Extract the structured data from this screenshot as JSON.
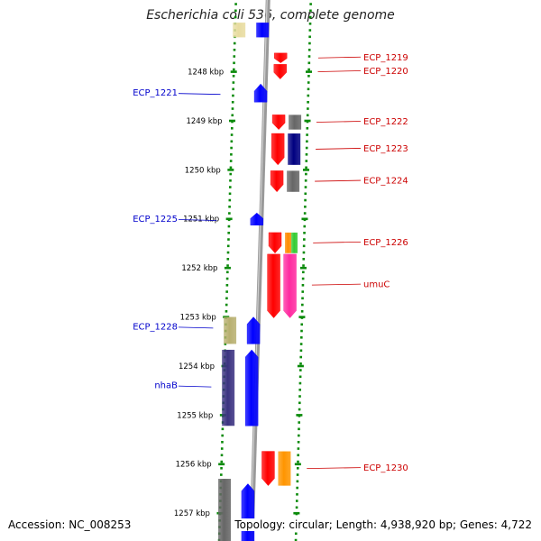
{
  "title": "Escherichia coli 536, complete genome",
  "footer": {
    "accession": "Accession: NC_008253",
    "summary": "Topology: circular; Length: 4,938,920 bp; Genes: 4,722"
  },
  "colors": {
    "backbone": "#999999",
    "tick": "#0a8a0a",
    "forward_label": "#0000cc",
    "reverse_label": "#cc0000"
  },
  "chart_data": {
    "type": "genome-map",
    "axis_unit": "kbp",
    "ticks": [
      {
        "kbp": 1248,
        "label": "1248 kbp"
      },
      {
        "kbp": 1249,
        "label": "1249 kbp"
      },
      {
        "kbp": 1250,
        "label": "1250 kbp"
      },
      {
        "kbp": 1251,
        "label": "1251 kbp"
      },
      {
        "kbp": 1252,
        "label": "1252 kbp"
      },
      {
        "kbp": 1253,
        "label": "1253 kbp"
      },
      {
        "kbp": 1254,
        "label": "1254 kbp"
      },
      {
        "kbp": 1255,
        "label": "1255 kbp"
      },
      {
        "kbp": 1256,
        "label": "1256 kbp"
      },
      {
        "kbp": 1257,
        "label": "1257 kbp"
      }
    ],
    "labeled_genes": [
      {
        "name": "ECP_1219",
        "strand": "reverse",
        "start_kbp": 1247.62,
        "end_kbp": 1247.82
      },
      {
        "name": "ECP_1220",
        "strand": "reverse",
        "start_kbp": 1247.85,
        "end_kbp": 1248.15
      },
      {
        "name": "ECP_1221",
        "strand": "forward",
        "start_kbp": 1248.25,
        "end_kbp": 1248.62
      },
      {
        "name": "ECP_1222",
        "strand": "reverse",
        "start_kbp": 1248.88,
        "end_kbp": 1249.18
      },
      {
        "name": "ECP_1223",
        "strand": "reverse",
        "start_kbp": 1249.26,
        "end_kbp": 1249.9
      },
      {
        "name": "ECP_1224",
        "strand": "reverse",
        "start_kbp": 1250.02,
        "end_kbp": 1250.45
      },
      {
        "name": "ECP_1225",
        "strand": "forward",
        "start_kbp": 1250.88,
        "end_kbp": 1251.13
      },
      {
        "name": "ECP_1226",
        "strand": "reverse",
        "start_kbp": 1251.28,
        "end_kbp": 1251.7
      },
      {
        "name": "umuC",
        "strand": "reverse",
        "start_kbp": 1251.72,
        "end_kbp": 1253.02
      },
      {
        "name": "ECP_1228",
        "strand": "forward",
        "start_kbp": 1253.0,
        "end_kbp": 1253.55
      },
      {
        "name": "nhaB",
        "strand": "forward",
        "start_kbp": 1253.67,
        "end_kbp": 1255.22
      },
      {
        "name": "ECP_1230",
        "strand": "reverse",
        "start_kbp": 1255.74,
        "end_kbp": 1256.44
      }
    ],
    "other_features": [
      {
        "strand": "forward",
        "start_kbp": 1247.0,
        "end_kbp": 1247.3
      },
      {
        "strand": "forward",
        "start_kbp": 1247.0,
        "end_kbp": 1247.3
      },
      {
        "strand": "reverse",
        "start_kbp": 1248.88,
        "end_kbp": 1249.18
      },
      {
        "strand": "reverse",
        "start_kbp": 1249.26,
        "end_kbp": 1249.9
      },
      {
        "strand": "reverse",
        "start_kbp": 1250.02,
        "end_kbp": 1250.45
      },
      {
        "strand": "reverse",
        "start_kbp": 1251.28,
        "end_kbp": 1251.7
      },
      {
        "strand": "reverse",
        "start_kbp": 1251.28,
        "end_kbp": 1251.7
      },
      {
        "strand": "reverse",
        "start_kbp": 1251.72,
        "end_kbp": 1253.02
      },
      {
        "strand": "forward",
        "start_kbp": 1253.0,
        "end_kbp": 1253.55
      },
      {
        "strand": "forward",
        "start_kbp": 1253.67,
        "end_kbp": 1255.22
      },
      {
        "strand": "reverse",
        "start_kbp": 1255.74,
        "end_kbp": 1256.44
      },
      {
        "strand": "forward",
        "start_kbp": 1256.3,
        "end_kbp": 1257.6
      },
      {
        "strand": "forward",
        "start_kbp": 1256.4,
        "end_kbp": 1257.6
      }
    ]
  }
}
